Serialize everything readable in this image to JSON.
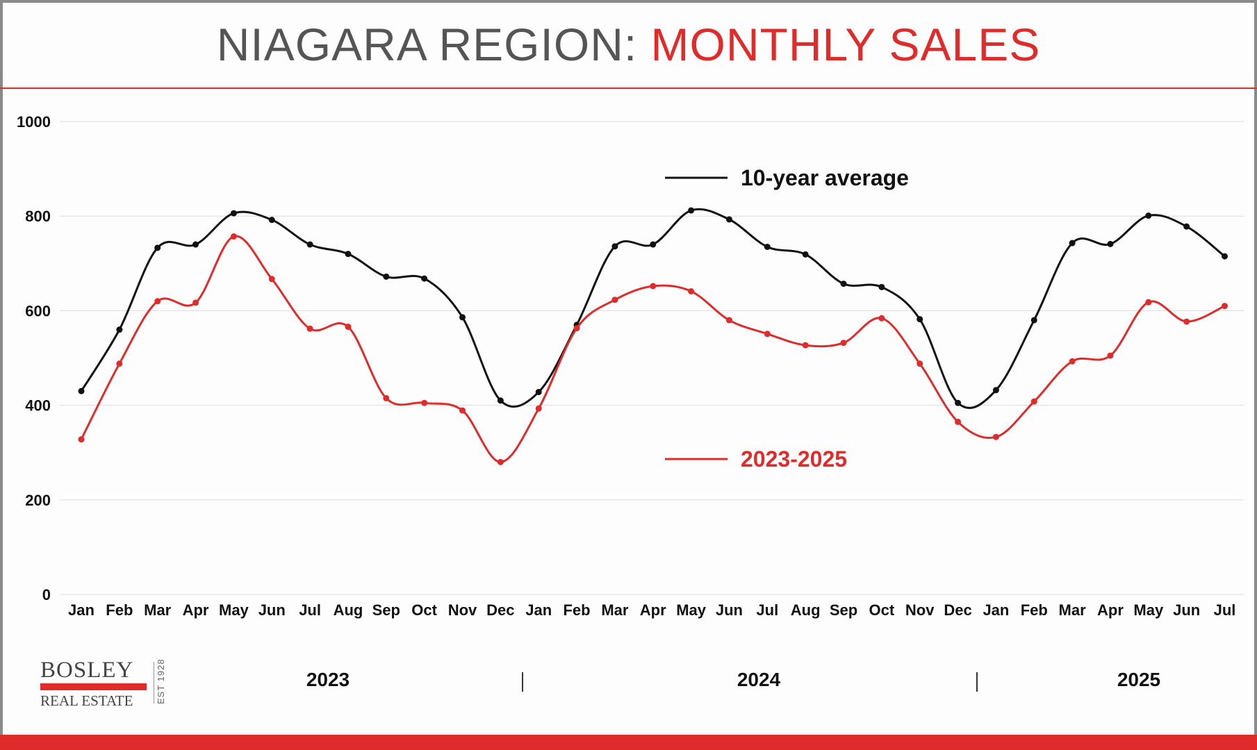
{
  "header": {
    "title_part1": "NIAGARA REGION: ",
    "title_part2": "MONTHLY SALES"
  },
  "colors": {
    "accent": "#e02b2b",
    "average": "#111111",
    "title_gray": "#555555",
    "grid": "#dddddd"
  },
  "logo": {
    "brand": "BOSLEY",
    "sub": "REAL ESTATE",
    "est": "EST 1928"
  },
  "chart_data": {
    "type": "line",
    "title": "NIAGARA REGION: MONTHLY SALES",
    "categories": [
      "Jan",
      "Feb",
      "Mar",
      "Apr",
      "May",
      "Jun",
      "Jul",
      "Aug",
      "Sep",
      "Oct",
      "Nov",
      "Dec",
      "Jan",
      "Feb",
      "Mar",
      "Apr",
      "May",
      "Jun",
      "Jul",
      "Aug",
      "Sep",
      "Oct",
      "Nov",
      "Dec",
      "Jan",
      "Feb",
      "Mar",
      "Apr",
      "May",
      "Jun",
      "Jul"
    ],
    "ylim": [
      0,
      1000
    ],
    "yticks": [
      "0",
      "200",
      "400",
      "600",
      "800",
      "1000"
    ],
    "grid": true,
    "years": [
      "2023",
      "2024",
      "2025"
    ],
    "series": [
      {
        "name": "10-year average",
        "color": "#111111",
        "values": [
          430,
          560,
          733,
          740,
          806,
          792,
          740,
          720,
          672,
          668,
          586,
          410,
          428,
          570,
          736,
          740,
          812,
          793,
          735,
          719,
          657,
          650,
          582,
          405,
          432,
          580,
          743,
          741,
          801,
          778,
          715
        ]
      },
      {
        "name": "2023-2025",
        "color": "#e02b2b",
        "values": [
          328,
          488,
          620,
          617,
          757,
          667,
          562,
          566,
          415,
          405,
          389,
          280,
          393,
          563,
          623,
          652,
          641,
          580,
          551,
          527,
          532,
          584,
          488,
          365,
          333,
          408,
          493,
          505,
          618,
          577,
          610
        ]
      }
    ]
  }
}
